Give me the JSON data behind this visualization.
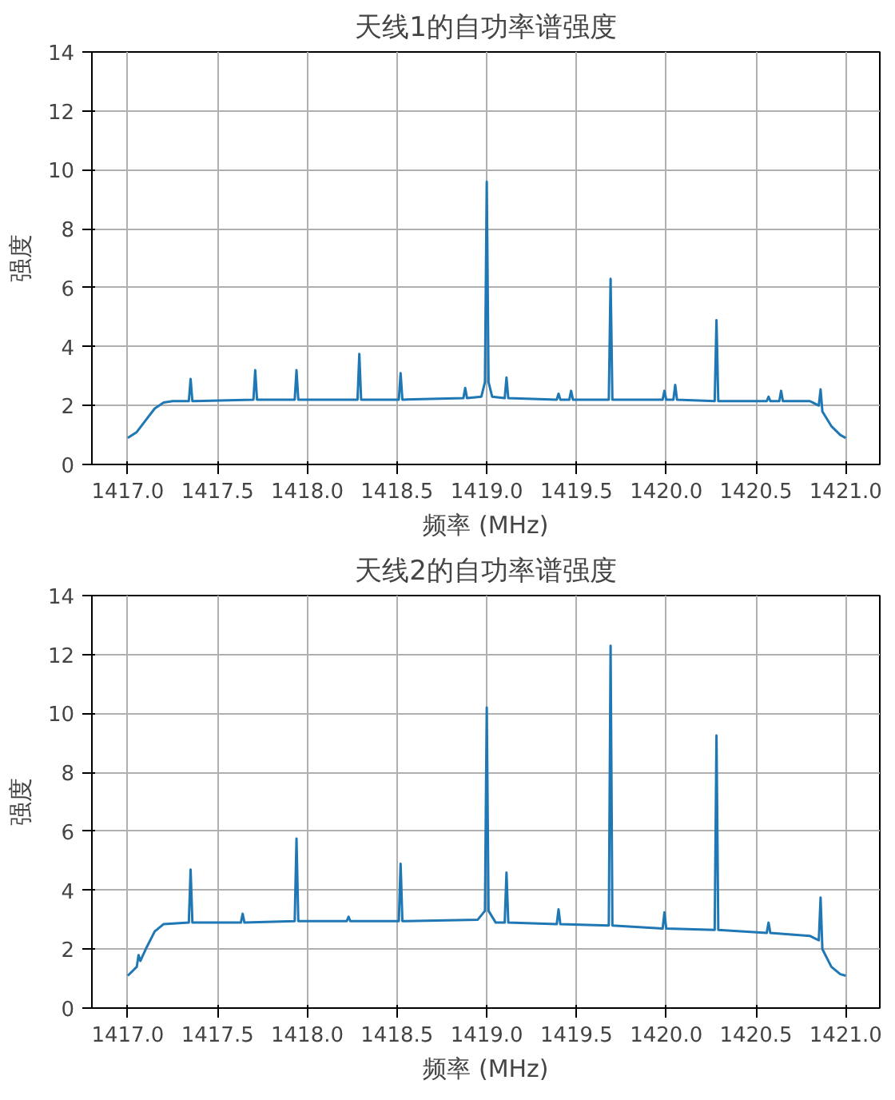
{
  "chart_data": [
    {
      "type": "line",
      "title": "天线1的自功率谱强度",
      "xlabel": "频率 (MHz)",
      "ylabel": "强度",
      "xlim": [
        1416.8,
        1421.19
      ],
      "ylim": [
        0,
        14
      ],
      "xticks": [
        {
          "value": 1417,
          "label": "1417.0"
        },
        1417.5,
        {
          "value": 1418,
          "label": "1418.0"
        },
        1418.5,
        {
          "value": 1419,
          "label": "1419.0"
        },
        1419.5,
        {
          "value": 1420,
          "label": "1420.0"
        },
        1420.5,
        {
          "value": 1421,
          "label": "1421.0"
        }
      ],
      "yticks": [
        0,
        2,
        4,
        6,
        8,
        10,
        12,
        14
      ],
      "grid": true,
      "series": [
        {
          "color": "#1f77b4",
          "x": [
            1417.0,
            1417.05,
            1417.1,
            1417.15,
            1417.2,
            1417.25,
            1417.34,
            1417.35,
            1417.36,
            1417.7,
            1417.71,
            1417.72,
            1417.93,
            1417.94,
            1417.95,
            1418.28,
            1418.29,
            1418.3,
            1418.51,
            1418.52,
            1418.53,
            1418.87,
            1418.88,
            1418.89,
            1418.97,
            1418.99,
            1419.0,
            1419.01,
            1419.03,
            1419.1,
            1419.11,
            1419.12,
            1419.39,
            1419.4,
            1419.41,
            1419.46,
            1419.47,
            1419.48,
            1419.68,
            1419.69,
            1419.7,
            1419.98,
            1419.99,
            1420.0,
            1420.04,
            1420.05,
            1420.06,
            1420.27,
            1420.28,
            1420.29,
            1420.56,
            1420.57,
            1420.58,
            1420.63,
            1420.64,
            1420.65,
            1420.8,
            1420.85,
            1420.86,
            1420.87,
            1420.92,
            1420.97,
            1421.0
          ],
          "values": [
            0.9,
            1.1,
            1.5,
            1.9,
            2.1,
            2.15,
            2.15,
            2.9,
            2.15,
            2.2,
            3.2,
            2.2,
            2.2,
            3.2,
            2.2,
            2.2,
            3.75,
            2.2,
            2.2,
            3.1,
            2.2,
            2.25,
            2.6,
            2.25,
            2.3,
            2.8,
            9.6,
            2.8,
            2.3,
            2.25,
            2.95,
            2.25,
            2.2,
            2.4,
            2.2,
            2.2,
            2.5,
            2.2,
            2.2,
            6.3,
            2.2,
            2.2,
            2.5,
            2.2,
            2.2,
            2.7,
            2.2,
            2.15,
            4.9,
            2.15,
            2.15,
            2.3,
            2.15,
            2.15,
            2.5,
            2.15,
            2.15,
            2.0,
            2.55,
            1.8,
            1.3,
            1.0,
            0.9
          ]
        }
      ]
    },
    {
      "type": "line",
      "title": "天线2的自功率谱强度",
      "xlabel": "频率 (MHz)",
      "ylabel": "强度",
      "xlim": [
        1416.8,
        1421.19
      ],
      "ylim": [
        0,
        14
      ],
      "xticks": [
        {
          "value": 1417,
          "label": "1417.0"
        },
        1417.5,
        {
          "value": 1418,
          "label": "1418.0"
        },
        1418.5,
        {
          "value": 1419,
          "label": "1419.0"
        },
        1419.5,
        {
          "value": 1420,
          "label": "1420.0"
        },
        1420.5,
        {
          "value": 1421,
          "label": "1421.0"
        }
      ],
      "yticks": [
        0,
        2,
        4,
        6,
        8,
        10,
        12,
        14
      ],
      "grid": true,
      "series": [
        {
          "color": "#1f77b4",
          "x": [
            1417.0,
            1417.05,
            1417.06,
            1417.07,
            1417.1,
            1417.15,
            1417.2,
            1417.34,
            1417.35,
            1417.36,
            1417.63,
            1417.64,
            1417.65,
            1417.93,
            1417.94,
            1417.95,
            1418.22,
            1418.23,
            1418.24,
            1418.51,
            1418.52,
            1418.53,
            1418.95,
            1418.99,
            1419.0,
            1419.01,
            1419.05,
            1419.1,
            1419.11,
            1419.12,
            1419.39,
            1419.4,
            1419.41,
            1419.68,
            1419.69,
            1419.7,
            1419.98,
            1419.99,
            1420.0,
            1420.27,
            1420.28,
            1420.29,
            1420.56,
            1420.57,
            1420.58,
            1420.8,
            1420.85,
            1420.86,
            1420.87,
            1420.92,
            1420.97,
            1421.0
          ],
          "values": [
            1.1,
            1.4,
            1.8,
            1.6,
            2.0,
            2.6,
            2.85,
            2.9,
            4.7,
            2.9,
            2.9,
            3.2,
            2.9,
            2.95,
            5.75,
            2.95,
            2.95,
            3.1,
            2.95,
            2.95,
            4.9,
            2.95,
            3.0,
            3.3,
            10.2,
            3.3,
            2.9,
            2.9,
            4.6,
            2.9,
            2.85,
            3.35,
            2.85,
            2.8,
            12.3,
            2.8,
            2.7,
            3.25,
            2.7,
            2.65,
            9.25,
            2.65,
            2.55,
            2.9,
            2.55,
            2.45,
            2.3,
            3.75,
            2.0,
            1.4,
            1.15,
            1.1
          ]
        }
      ]
    }
  ]
}
